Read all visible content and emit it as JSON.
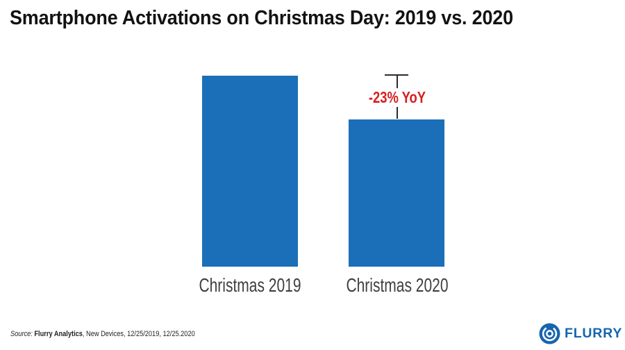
{
  "chart_data": {
    "type": "bar",
    "title": "Smartphone Activations on Christmas Day: 2019 vs. 2020",
    "categories": [
      "Christmas 2019",
      "Christmas 2020"
    ],
    "values": [
      100,
      77
    ],
    "ylim": [
      0,
      100
    ],
    "grid": false,
    "legend": false,
    "xlabel": "",
    "ylabel": "",
    "bar_color": "#1b6fb8",
    "annotation": "-23% YoY",
    "annotation_color": "#d62021",
    "note": "No y-axis shown; heights estimated as relative index (2019 = 100, 2020 = 77, i.e. -23% YoY)"
  },
  "footer": {
    "source_prefix": "Source: ",
    "source_name": "Flurry Analytics",
    "source_rest": ", New Devices, 12/25/2019, 12/25.2020",
    "brand": "FLURRY",
    "brand_color": "#1565ae"
  },
  "colors": {
    "bar": "#1b6fb8",
    "annotation_red": "#d62021",
    "brand_blue": "#1565ae",
    "whisker": "#2b2b2b",
    "axis_label": "#3f3f3f",
    "title": "#121212"
  }
}
